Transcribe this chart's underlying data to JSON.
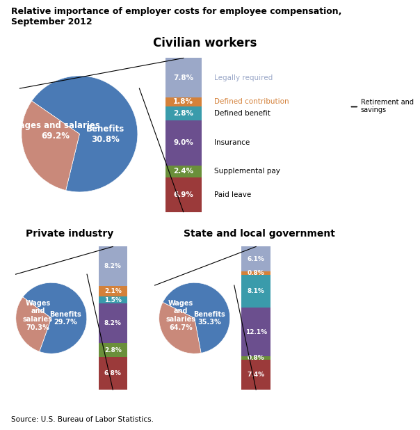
{
  "title": "Relative importance of employer costs for employee compensation,\nSeptember 2012",
  "source": "Source: U.S. Bureau of Labor Statistics.",
  "civilian": {
    "title": "Civilian workers",
    "wages_pct": 69.2,
    "benefits_pct": 30.8,
    "wages_label": "Wages and salaries\n69.2%",
    "benefits_label": "Benefits\n30.8%",
    "bar": [
      6.9,
      2.4,
      9.0,
      2.8,
      1.8,
      7.8
    ],
    "bar_labels": [
      "6.9%",
      "2.4%",
      "9.0%",
      "2.8%",
      "1.8%",
      "7.8%"
    ],
    "bar_colors": [
      "#9b3a3a",
      "#6a8f3a",
      "#6b4f8e",
      "#3a9bab",
      "#d4813a",
      "#9ba8c8"
    ],
    "legend_labels": [
      "Paid leave",
      "Supplemental pay",
      "Insurance",
      "Defined benefit",
      "Defined contribution",
      "Legally required"
    ],
    "legend_text_colors": [
      "black",
      "black",
      "black",
      "black",
      "#d4813a",
      "#9ba8c8"
    ]
  },
  "private": {
    "title": "Private industry",
    "wages_pct": 70.3,
    "benefits_pct": 29.7,
    "wages_label": "Wages\nand\nsalaries\n70.3%",
    "benefits_label": "Benefits\n29.7%",
    "bar": [
      6.8,
      2.8,
      8.2,
      1.5,
      2.1,
      8.2
    ],
    "bar_labels": [
      "6.8%",
      "2.8%",
      "8.2%",
      "1.5%",
      "2.1%",
      "8.2%"
    ],
    "bar_colors": [
      "#9b3a3a",
      "#6a8f3a",
      "#6b4f8e",
      "#3a9bab",
      "#d4813a",
      "#9ba8c8"
    ]
  },
  "state": {
    "title": "State and local government",
    "wages_pct": 64.7,
    "benefits_pct": 35.3,
    "wages_label": "Wages\nand\nsalaries\n64.7%",
    "benefits_label": "Benefits\n35.3%",
    "bar": [
      7.4,
      0.8,
      12.1,
      8.1,
      0.8,
      6.1
    ],
    "bar_labels": [
      "7.4%",
      "0.8%",
      "12.1%",
      "8.1%",
      "0.8%",
      "6.1%"
    ],
    "bar_colors": [
      "#9b3a3a",
      "#6a8f3a",
      "#6b4f8e",
      "#3a9bab",
      "#d4813a",
      "#9ba8c8"
    ]
  },
  "pie_colors": [
    "#4a7ab5",
    "#c9897a"
  ],
  "retirement_label": "Retirement and\nsavings"
}
